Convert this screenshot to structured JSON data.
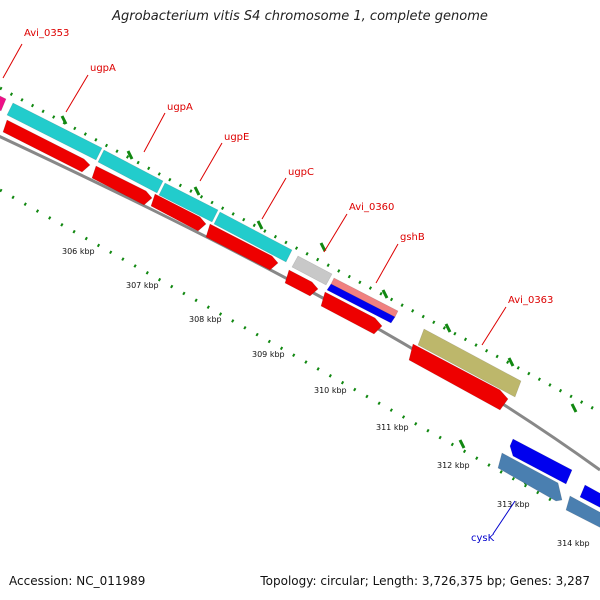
{
  "title": "Agrobacterium vitis S4 chromosome 1, complete genome",
  "accession": "Accession: NC_011989",
  "topology": "Topology: circular; Length: 3,726,375 bp; Genes: 3,287",
  "colors": {
    "cyan": "#22cccc",
    "red": "#ee0000",
    "gray": "#c8c8c8",
    "khaki": "#bdb76b",
    "blue": "#0000ee",
    "steel": "#4a7fb0",
    "magenta": "#ee1188",
    "salmon": "#f08080",
    "backbone": "#888888",
    "tick": "#118811",
    "label_red": "#dd0000",
    "label_blue": "#0000cc"
  },
  "kbp_labels": [
    "306 kbp",
    "307 kbp",
    "308 kbp",
    "309 kbp",
    "310 kbp",
    "311 kbp",
    "312 kbp",
    "313 kbp",
    "314 kbp"
  ],
  "gene_labels": [
    "Avi_0353",
    "ugpA",
    "ugpA",
    "ugpE",
    "ugpC",
    "Avi_0360",
    "gshB",
    "Avi_0363",
    "cysK"
  ]
}
